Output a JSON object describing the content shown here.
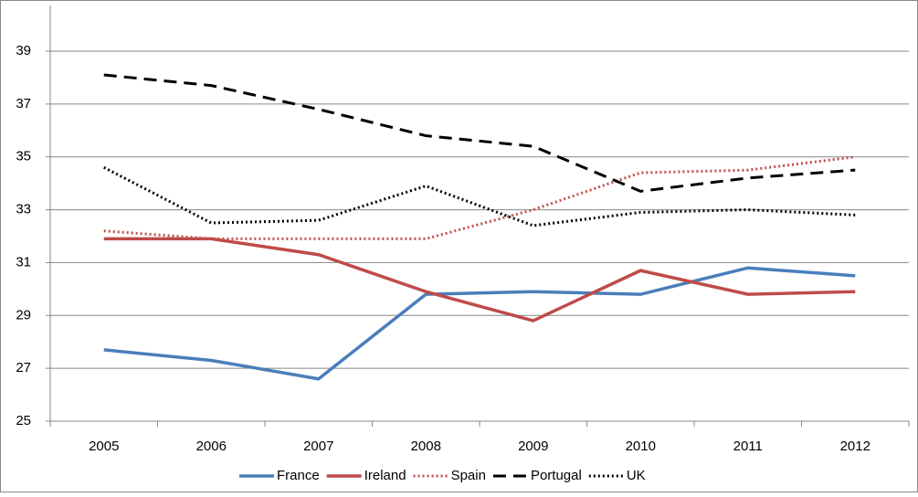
{
  "chart_data": {
    "type": "line",
    "categories": [
      "2005",
      "2006",
      "2007",
      "2008",
      "2009",
      "2010",
      "2011",
      "2012"
    ],
    "series": [
      {
        "name": "France",
        "color": "#4a7ebb",
        "style": "solid",
        "values": [
          27.7,
          27.3,
          26.6,
          29.8,
          29.9,
          29.8,
          30.8,
          30.5
        ]
      },
      {
        "name": "Ireland",
        "color": "#be4b48",
        "style": "solid",
        "values": [
          31.9,
          31.9,
          31.3,
          29.9,
          28.8,
          30.7,
          29.8,
          29.9
        ]
      },
      {
        "name": "Spain",
        "color": "#c0504d",
        "style": "dotted",
        "values": [
          32.2,
          31.9,
          31.9,
          31.9,
          33.0,
          34.4,
          34.5,
          35.0
        ]
      },
      {
        "name": "Portugal",
        "color": "#000000",
        "style": "dashed",
        "values": [
          38.1,
          37.7,
          36.8,
          35.8,
          35.4,
          33.7,
          34.2,
          34.5
        ]
      },
      {
        "name": "UK",
        "color": "#000000",
        "style": "dotted",
        "values": [
          34.6,
          32.5,
          32.6,
          33.9,
          32.4,
          32.9,
          33.0,
          32.8
        ]
      }
    ],
    "ylim": [
      25,
      39
    ],
    "yticks": [
      25,
      27,
      29,
      31,
      33,
      35,
      37,
      39
    ],
    "grid": true,
    "legend": "bottom"
  }
}
